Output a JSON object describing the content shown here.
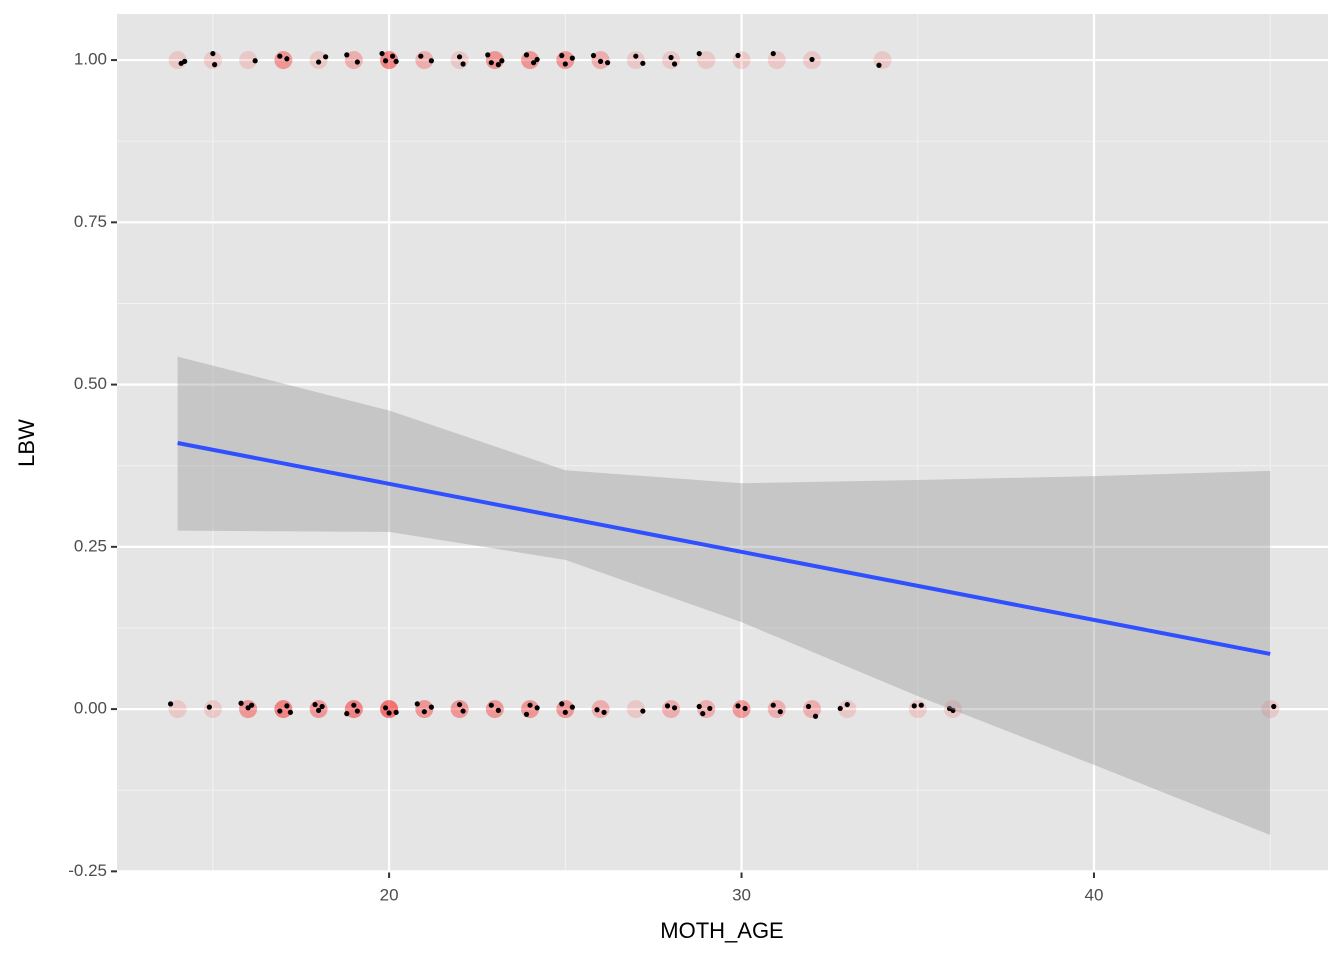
{
  "chart_data": {
    "type": "scatter",
    "xlabel": "MOTH_AGE",
    "ylabel": "LBW",
    "xlim": [
      12.28,
      46.64
    ],
    "ylim": [
      -0.251,
      1.071
    ],
    "xticks": [
      20,
      30,
      40
    ],
    "yticks": [
      {
        "value": -0.25,
        "label": "-0.25"
      },
      {
        "value": 0,
        "label": "0.00"
      },
      {
        "value": 0.25,
        "label": "0.25"
      },
      {
        "value": 0.5,
        "label": "0.50"
      },
      {
        "value": 0.75,
        "label": "0.75"
      },
      {
        "value": 1,
        "label": "1.00"
      }
    ],
    "minor_xticks": [
      15,
      25,
      35,
      45
    ],
    "minor_yticks": [
      -0.125,
      0.125,
      0.375,
      0.625,
      0.875
    ],
    "grid": true,
    "points": {
      "color": "#ff0000",
      "opacity": 0.13,
      "x": [
        14,
        15,
        16,
        17,
        17,
        17,
        18,
        19,
        19,
        20,
        20,
        20,
        20,
        21,
        21,
        22,
        23,
        23,
        23,
        24,
        24,
        24,
        25,
        25,
        25,
        26,
        26,
        27,
        28,
        29,
        30,
        31,
        32,
        34,
        14,
        15,
        16,
        16,
        16,
        17,
        17,
        17,
        17,
        18,
        18,
        18,
        19,
        19,
        19,
        19,
        20,
        20,
        20,
        20,
        20,
        21,
        21,
        21,
        22,
        22,
        22,
        23,
        23,
        23,
        24,
        24,
        24,
        25,
        25,
        25,
        26,
        26,
        27,
        28,
        28,
        29,
        29,
        30,
        30,
        30,
        31,
        31,
        32,
        32,
        33,
        35,
        36,
        45
      ],
      "y": [
        1,
        1,
        1,
        1,
        1,
        1,
        1,
        1,
        1,
        1,
        1,
        1,
        1,
        1,
        1,
        1,
        1,
        1,
        1,
        1,
        1,
        1,
        1,
        1,
        1,
        1,
        1,
        1,
        1,
        1,
        1,
        1,
        1,
        1,
        0,
        0,
        0,
        0,
        0,
        0,
        0,
        0,
        0,
        0,
        0,
        0,
        0,
        0,
        0,
        0,
        0,
        0,
        0,
        0,
        0,
        0,
        0,
        0,
        0,
        0,
        0,
        0,
        0,
        0,
        0,
        0,
        0,
        0,
        0,
        0,
        0,
        0,
        0,
        0,
        0,
        0,
        0,
        0,
        0,
        0,
        0,
        0,
        0,
        0,
        0,
        0,
        0,
        0
      ]
    },
    "jitter": {
      "color": "#000000",
      "x": [
        14.1,
        14.2,
        15,
        15.05,
        16.2,
        16.9,
        17.1,
        18,
        18.2,
        18.8,
        19.1,
        19.8,
        19.9,
        20.1,
        20.2,
        20.9,
        21.2,
        22,
        22.1,
        22.8,
        22.9,
        23.1,
        23.2,
        23.9,
        24.1,
        24.2,
        24.9,
        25,
        25.2,
        25.8,
        26,
        26.2,
        27,
        27.2,
        28,
        28.1,
        28.8,
        29.9,
        30.9,
        32,
        33.9,
        13.8,
        14.9,
        15.8,
        16,
        16.1,
        16.9,
        17.1,
        17.2,
        17.9,
        18,
        18.1,
        18.8,
        19,
        19.1,
        19.9,
        20,
        20.2,
        20.8,
        21,
        21.2,
        22,
        22.1,
        22.9,
        23.1,
        23.9,
        24,
        24.2,
        24.9,
        25,
        25.2,
        25.9,
        26.1,
        27.2,
        27.9,
        28.1,
        28.8,
        28.9,
        29.1,
        29.9,
        30.1,
        30.9,
        31.1,
        31.9,
        32.1,
        32.8,
        33,
        34.9,
        35.1,
        35.9,
        36,
        45.1
      ],
      "y": [
        0.995,
        0.998,
        1.01,
        0.993,
        0.999,
        1.006,
        1.002,
        0.997,
        1.005,
        1.008,
        0.997,
        1.01,
        0.999,
        1.006,
        0.998,
        1.006,
        0.999,
        1.005,
        0.994,
        1.008,
        0.996,
        0.993,
        0.999,
        1.008,
        0.996,
        1.001,
        1.007,
        0.994,
        1.003,
        1.007,
        0.998,
        0.996,
        1.006,
        0.995,
        1.004,
        0.994,
        1.01,
        1.007,
        1.01,
        1.001,
        0.992,
        0.008,
        0.003,
        0.009,
        0.002,
        0.006,
        -0.003,
        0.005,
        -0.005,
        0.007,
        -0.002,
        0.004,
        -0.007,
        0.006,
        -0.003,
        0.002,
        -0.006,
        -0.005,
        0.008,
        -0.004,
        0.003,
        0.007,
        -0.003,
        0.006,
        -0.002,
        -0.008,
        0.006,
        0.002,
        0.008,
        -0.005,
        0.003,
        -0.001,
        -0.005,
        -0.003,
        0.005,
        0.002,
        0.004,
        -0.007,
        0.001,
        0.005,
        0.001,
        0.006,
        -0.004,
        0.004,
        -0.011,
        0.001,
        0.007,
        0.005,
        0.006,
        0.001,
        -0.002,
        0.004
      ]
    },
    "fit": {
      "color": "#3050ff",
      "x": [
        14,
        45
      ],
      "y": [
        0.41,
        0.085
      ]
    },
    "band": {
      "color": "#999999",
      "x": [
        14,
        20,
        25,
        30,
        35,
        40,
        45
      ],
      "lower": [
        0.275,
        0.273,
        0.23,
        0.134,
        0.02,
        -0.086,
        -0.194
      ],
      "upper": [
        0.543,
        0.46,
        0.368,
        0.348,
        0.353,
        0.359,
        0.367
      ]
    }
  }
}
